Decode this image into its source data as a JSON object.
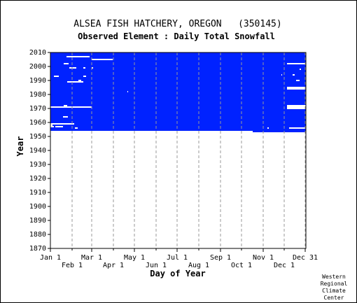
{
  "chart_data": {
    "type": "heatmap",
    "title": "ALSEA FISH HATCHERY, OREGON   (350145)",
    "subtitle": "Observed Element : Daily Total Snowfall",
    "xlabel": "Day of Year",
    "ylabel": "Year",
    "xlim": [
      1,
      366
    ],
    "ylim": [
      1870,
      2010
    ],
    "x_ticks_upper": [
      {
        "label": "Jan 1",
        "day": 1
      },
      {
        "label": "Mar 1",
        "day": 60
      },
      {
        "label": "May 1",
        "day": 121
      },
      {
        "label": "Jul 1",
        "day": 182
      },
      {
        "label": "Sep 1",
        "day": 244
      },
      {
        "label": "Nov 1",
        "day": 305
      },
      {
        "label": "Dec 31",
        "day": 365
      }
    ],
    "x_ticks_lower": [
      {
        "label": "Feb 1",
        "day": 32
      },
      {
        "label": "Apr 1",
        "day": 91
      },
      {
        "label": "Jun 1",
        "day": 152
      },
      {
        "label": "Aug 1",
        "day": 213
      },
      {
        "label": "Oct 1",
        "day": 274
      },
      {
        "label": "Dec 1",
        "day": 335
      }
    ],
    "y_ticks": [
      "1870",
      "1880",
      "1890",
      "1900",
      "1910",
      "1920",
      "1930",
      "1940",
      "1950",
      "1960",
      "1970",
      "1980",
      "1990",
      "2000",
      "2010"
    ],
    "gridlines": "dashed vertical at month starts",
    "observed_color": "#0022ff",
    "observed_period": {
      "year_start": 1954,
      "year_end": 2010,
      "day_start": 1,
      "day_end": 366
    },
    "observed_extension": {
      "year_start": 1953,
      "year_end": 1954,
      "day_start": 290,
      "day_end": 366
    },
    "missing_data_color": "#ffffff",
    "missing_segments": [
      {
        "year": 2007,
        "day_start": 24,
        "day_end": 57
      },
      {
        "year": 2005,
        "day_start": 60,
        "day_end": 90
      },
      {
        "year": 2002,
        "day_start": 20,
        "day_end": 27
      },
      {
        "year": 2002,
        "day_start": 339,
        "day_end": 365
      },
      {
        "year": 1999,
        "day_start": 28,
        "day_end": 38
      },
      {
        "year": 1999,
        "day_start": 48,
        "day_end": 51
      },
      {
        "year": 1999,
        "day_start": 60,
        "day_end": 62
      },
      {
        "year": 1998,
        "day_start": 357,
        "day_end": 359
      },
      {
        "year": 1994,
        "day_start": 347,
        "day_end": 350
      },
      {
        "year": 1994,
        "day_start": 331,
        "day_end": 332
      },
      {
        "year": 1993,
        "day_start": 6,
        "day_end": 13
      },
      {
        "year": 1993,
        "day_start": 48,
        "day_end": 52
      },
      {
        "year": 1990,
        "day_start": 352,
        "day_end": 357
      },
      {
        "year": 1990,
        "day_start": 41,
        "day_end": 45
      },
      {
        "year": 1989,
        "day_start": 25,
        "day_end": 48
      },
      {
        "year": 1985,
        "day_start": 339,
        "day_end": 366
      },
      {
        "year": 1984,
        "day_start": 339,
        "day_end": 366
      },
      {
        "year": 1982,
        "day_start": 111,
        "day_end": 112
      },
      {
        "year": 1972,
        "day_start": 20,
        "day_end": 25
      },
      {
        "year": 1972,
        "day_start": 339,
        "day_end": 366
      },
      {
        "year": 1971,
        "day_start": 1,
        "day_end": 60
      },
      {
        "year": 1971,
        "day_start": 339,
        "day_end": 366
      },
      {
        "year": 1970,
        "day_start": 339,
        "day_end": 366
      },
      {
        "year": 1964,
        "day_start": 19,
        "day_end": 26
      },
      {
        "year": 1959,
        "day_start": 1,
        "day_end": 35
      },
      {
        "year": 1958,
        "day_start": 1,
        "day_end": 4
      },
      {
        "year": 1957,
        "day_start": 1,
        "day_end": 6
      },
      {
        "year": 1957,
        "day_start": 8,
        "day_end": 19
      },
      {
        "year": 1956,
        "day_start": 36,
        "day_end": 40
      },
      {
        "year": 1956,
        "day_start": 342,
        "day_end": 366
      },
      {
        "year": 1956,
        "day_start": 311,
        "day_end": 313
      }
    ],
    "credit_lines": [
      "Western",
      "Regional",
      "Climate",
      "Center"
    ]
  }
}
